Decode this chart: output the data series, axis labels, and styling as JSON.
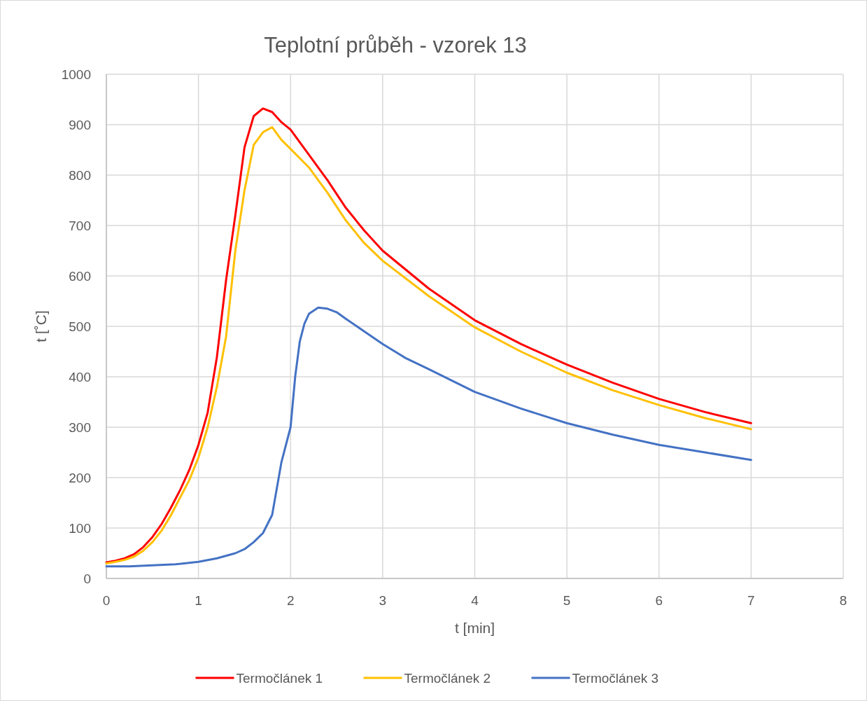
{
  "chart_data": {
    "type": "line",
    "title": "Teplotní průběh - vzorek 13",
    "xlabel": "t [min]",
    "ylabel": "t [˚C]",
    "xlim": [
      0,
      8
    ],
    "xticks": [
      0,
      1,
      2,
      3,
      4,
      5,
      6,
      7,
      8
    ],
    "ylim": [
      0,
      1000
    ],
    "yticks": [
      0,
      100,
      200,
      300,
      400,
      500,
      600,
      700,
      800,
      900,
      1000
    ],
    "grid": true,
    "legend": "bottom",
    "marker": "none",
    "line_style": "solid",
    "series": [
      {
        "name": "Termočlánek 1",
        "color": "#ff0000",
        "x": [
          0,
          0.1,
          0.2,
          0.3,
          0.4,
          0.5,
          0.6,
          0.7,
          0.8,
          0.9,
          1.0,
          1.1,
          1.2,
          1.3,
          1.4,
          1.5,
          1.6,
          1.7,
          1.8,
          1.9,
          2.0,
          2.2,
          2.4,
          2.6,
          2.8,
          3.0,
          3.5,
          4,
          4.5,
          5,
          5.5,
          6,
          6.5,
          7
        ],
        "values": [
          32,
          35,
          40,
          48,
          62,
          82,
          108,
          140,
          175,
          215,
          265,
          329,
          439,
          592,
          720,
          855,
          917,
          932,
          925,
          905,
          890,
          840,
          790,
          735,
          690,
          650,
          575,
          512,
          465,
          424,
          388,
          356,
          330,
          308
        ]
      },
      {
        "name": "Termočlánek 2",
        "color": "#ffc000",
        "x": [
          0,
          0.1,
          0.2,
          0.3,
          0.4,
          0.5,
          0.6,
          0.7,
          0.8,
          0.9,
          1.0,
          1.1,
          1.2,
          1.3,
          1.4,
          1.5,
          1.6,
          1.7,
          1.8,
          1.9,
          2.0,
          2.2,
          2.4,
          2.6,
          2.8,
          3.0,
          3.5,
          4,
          4.5,
          5,
          5.5,
          6,
          6.5,
          7
        ],
        "values": [
          30,
          33,
          37,
          43,
          55,
          72,
          95,
          125,
          160,
          195,
          240,
          300,
          380,
          480,
          650,
          770,
          860,
          885,
          895,
          870,
          852,
          815,
          765,
          710,
          665,
          630,
          560,
          498,
          450,
          408,
          373,
          344,
          318,
          296
        ]
      },
      {
        "name": "Termočlánek 3",
        "color": "#4472c4",
        "x": [
          0,
          0.25,
          0.5,
          0.75,
          1.0,
          1.2,
          1.4,
          1.5,
          1.6,
          1.7,
          1.8,
          1.9,
          2.0,
          2.05,
          2.1,
          2.15,
          2.2,
          2.3,
          2.4,
          2.5,
          2.6,
          2.8,
          3.0,
          3.25,
          3.5,
          4,
          4.5,
          5,
          5.5,
          6,
          6.5,
          7
        ],
        "values": [
          24,
          24,
          26,
          28,
          33,
          40,
          50,
          58,
          72,
          90,
          126,
          230,
          300,
          400,
          470,
          505,
          525,
          537,
          535,
          528,
          515,
          490,
          465,
          437,
          415,
          370,
          337,
          308,
          285,
          265,
          250,
          235
        ]
      }
    ]
  }
}
